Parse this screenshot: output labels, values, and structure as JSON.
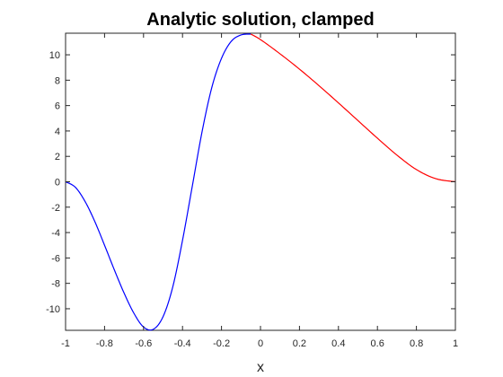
{
  "chart_data": {
    "type": "line",
    "title": "Analytic solution, clamped",
    "xlabel": "x",
    "ylabel": "",
    "xlim": [
      -1,
      1
    ],
    "ylim": [
      -11.7,
      11.7
    ],
    "xticks": [
      -1,
      -0.8,
      -0.6,
      -0.4,
      -0.2,
      0,
      0.2,
      0.4,
      0.6,
      0.8,
      1
    ],
    "xtick_labels": [
      "-1",
      "-0.8",
      "-0.6",
      "-0.4",
      "-0.2",
      "0",
      "0.2",
      "0.4",
      "0.6",
      "0.8",
      "1"
    ],
    "yticks": [
      -10,
      -8,
      -6,
      -4,
      -2,
      0,
      2,
      4,
      6,
      8,
      10
    ],
    "ytick_labels": [
      "-10",
      "-8",
      "-6",
      "-4",
      "-2",
      "0",
      "2",
      "4",
      "6",
      "8",
      "10"
    ],
    "grid": false,
    "series": [
      {
        "color": "#0000ff",
        "x": [
          -1.0,
          -0.95,
          -0.9,
          -0.85,
          -0.8,
          -0.75,
          -0.7,
          -0.65,
          -0.6,
          -0.55,
          -0.5,
          -0.45,
          -0.4,
          -0.35,
          -0.3,
          -0.25,
          -0.2,
          -0.15,
          -0.1,
          -0.05
        ],
        "y": [
          0.0,
          -0.43,
          -1.55,
          -3.13,
          -5.0,
          -6.93,
          -8.76,
          -10.34,
          -11.44,
          -11.62,
          -10.63,
          -8.28,
          -4.61,
          -0.36,
          3.92,
          7.41,
          9.72,
          11.06,
          11.56,
          11.63
        ]
      },
      {
        "color": "#ff0000",
        "x": [
          -0.05,
          0.0,
          0.1,
          0.2,
          0.3,
          0.4,
          0.5,
          0.6,
          0.7,
          0.8,
          0.9,
          1.0
        ],
        "y": [
          11.63,
          11.2,
          10.08,
          8.87,
          7.57,
          6.21,
          4.82,
          3.43,
          2.1,
          0.96,
          0.24,
          0.0
        ]
      }
    ]
  }
}
